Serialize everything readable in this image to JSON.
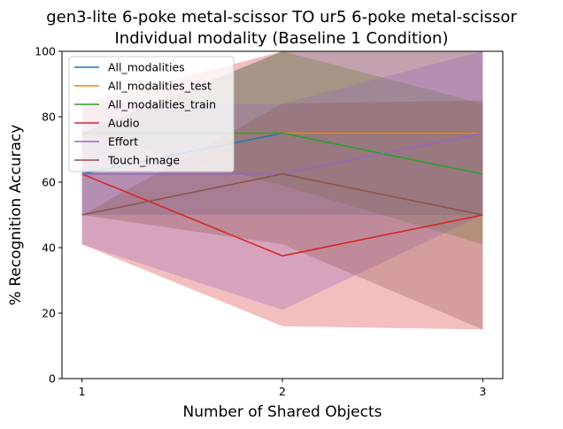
{
  "chart_data": {
    "type": "line",
    "title": "gen3-lite 6-poke metal-scissor TO ur5 6-poke metal-scissor",
    "subtitle": "Individual modality (Baseline 1 Condition)",
    "xlabel": "Number of Shared Objects",
    "ylabel": "% Recognition Accuracy",
    "x": [
      1,
      2,
      3
    ],
    "xticks": [
      "1",
      "2",
      "3"
    ],
    "xlim": [
      0.9,
      3.1
    ],
    "ylim": [
      0,
      100
    ],
    "yticks": [
      "0",
      "20",
      "40",
      "60",
      "80",
      "100"
    ],
    "grid": false,
    "legend_position": "top-left",
    "series": [
      {
        "name": "All_modalities",
        "color": "#1f77b4",
        "values": [
          62.5,
          75,
          75
        ],
        "lower": [
          50,
          50,
          50
        ],
        "upper": [
          75,
          100,
          100
        ]
      },
      {
        "name": "All_modalities_test",
        "color": "#ff7f0e",
        "values": [
          75,
          75,
          75
        ],
        "lower": [
          75,
          75,
          75
        ],
        "upper": [
          75,
          75,
          75
        ]
      },
      {
        "name": "All_modalities_train",
        "color": "#2ca02c",
        "values": [
          75,
          75,
          62.5
        ],
        "lower": [
          75,
          59,
          41
        ],
        "upper": [
          75,
          100,
          84
        ]
      },
      {
        "name": "Audio",
        "color": "#d62728",
        "values": [
          62.5,
          37.5,
          50
        ],
        "lower": [
          41,
          16,
          15
        ],
        "upper": [
          84,
          100,
          100
        ]
      },
      {
        "name": "Effort",
        "color": "#9467bd",
        "values": [
          62.5,
          62.5,
          75
        ],
        "lower": [
          41,
          21,
          50
        ],
        "upper": [
          84,
          84,
          100
        ]
      },
      {
        "name": "Touch_image",
        "color": "#8c564b",
        "values": [
          50,
          62.5,
          50
        ],
        "lower": [
          50,
          41,
          15
        ],
        "upper": [
          50,
          84,
          85
        ]
      }
    ]
  }
}
